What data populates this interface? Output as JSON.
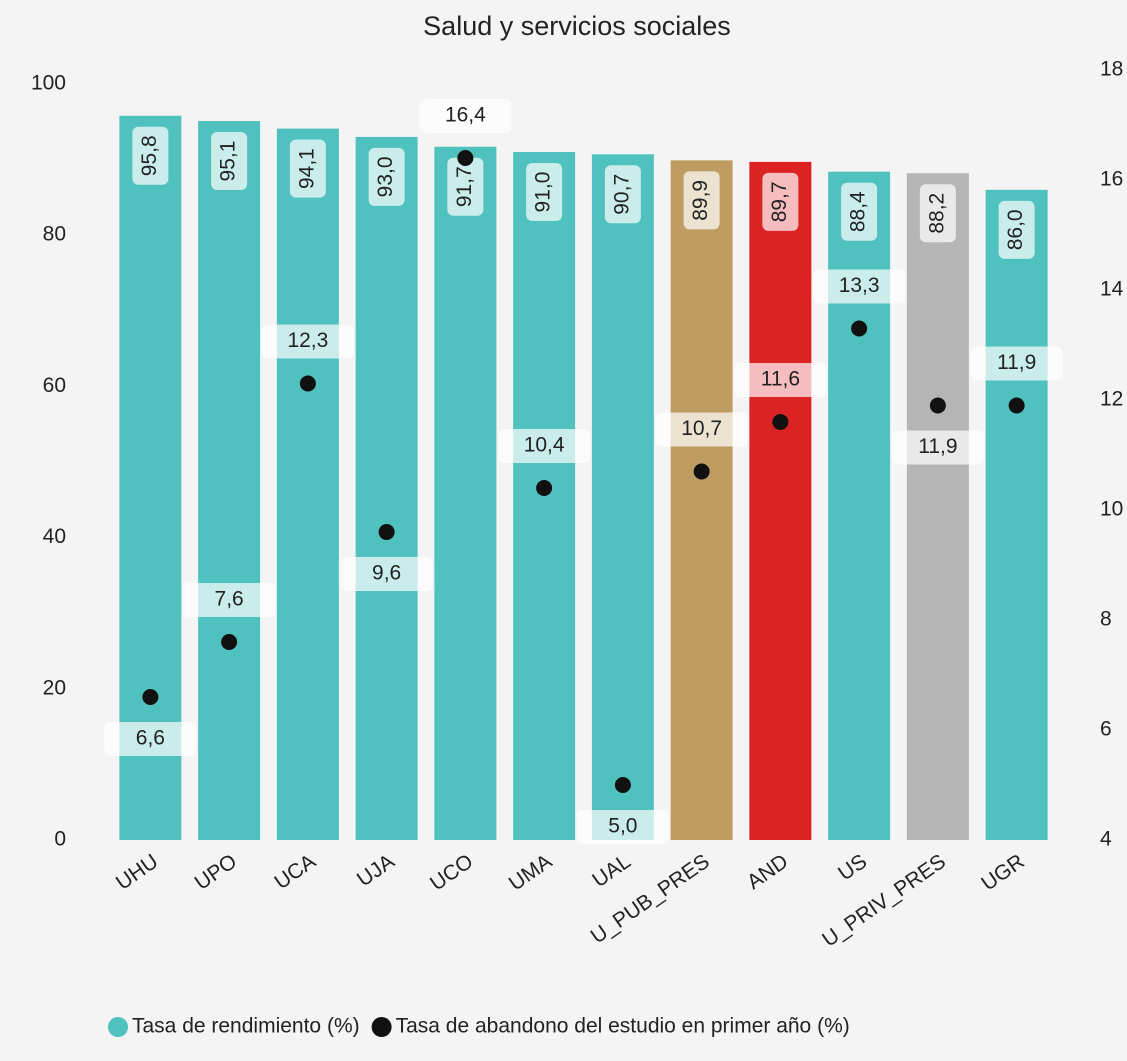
{
  "chart_data": {
    "type": "bar",
    "title": "Salud y servicios sociales",
    "categories": [
      "UHU",
      "UPO",
      "UCA",
      "UJA",
      "UCO",
      "UMA",
      "UAL",
      "U_PUB_PRES",
      "AND",
      "US",
      "U_PRIV_PRES",
      "UGR"
    ],
    "series": [
      {
        "name": "Tasa de rendimiento (%)",
        "type": "bar",
        "color": "#4fc1be",
        "colors": [
          "#4fc1be",
          "#4fc1be",
          "#4fc1be",
          "#4fc1be",
          "#4fc1be",
          "#4fc1be",
          "#4fc1be",
          "#bf9d62",
          "#dc2323",
          "#4fc1be",
          "#b5b5b5",
          "#4fc1be"
        ],
        "values": [
          95.8,
          95.1,
          94.1,
          93.0,
          91.7,
          91.0,
          90.7,
          89.9,
          89.7,
          88.4,
          88.2,
          86.0
        ],
        "value_labels": [
          "95,8",
          "95,1",
          "94,1",
          "93,0",
          "91,7",
          "91,0",
          "90,7",
          "89,9",
          "89,7",
          "88,4",
          "88,2",
          "86,0"
        ]
      },
      {
        "name": "Tasa de abandono del estudio en primer año (%)",
        "type": "scatter",
        "axis": "y2",
        "color": "#111111",
        "values": [
          6.6,
          7.6,
          12.3,
          9.6,
          16.4,
          10.4,
          5.0,
          10.7,
          11.6,
          13.3,
          11.9,
          11.9
        ],
        "value_labels": [
          "6,6",
          "7,6",
          "12,3",
          "9,6",
          "16,4",
          "10,4",
          "5,0",
          "10,7",
          "11,6",
          "13,3",
          "11,9",
          "11,9"
        ]
      }
    ],
    "ylim": [
      0,
      100
    ],
    "yticks": [
      0,
      20,
      40,
      60,
      80,
      100
    ],
    "y2lim": [
      4,
      18
    ],
    "y2ticks": [
      4,
      6,
      8,
      10,
      12,
      14,
      16,
      18
    ],
    "grid": false,
    "legend": "bottom"
  }
}
